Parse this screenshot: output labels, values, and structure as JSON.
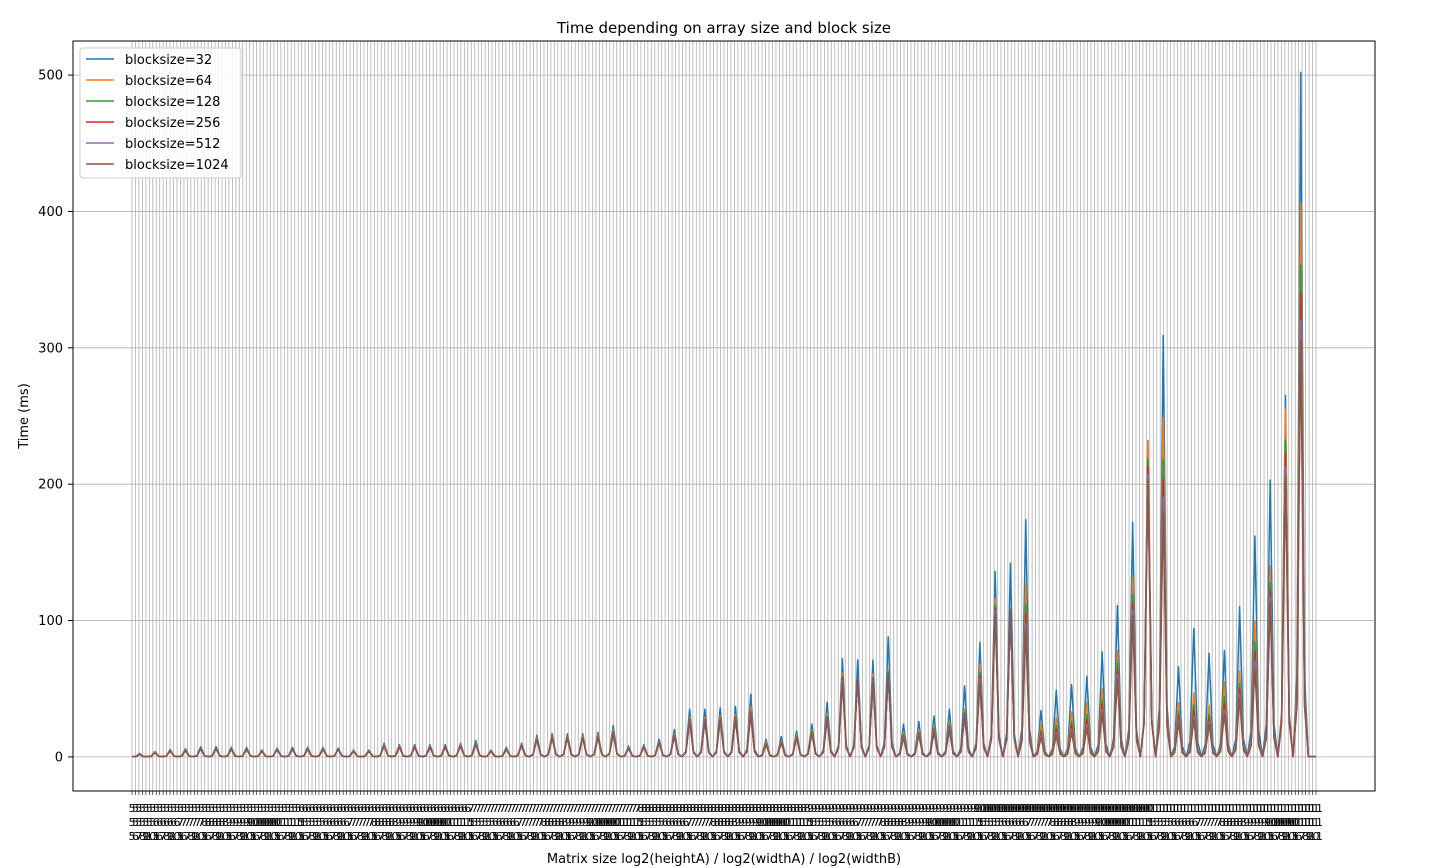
{
  "chart_data": {
    "type": "line",
    "title": "Time depending on array size and block size",
    "xlabel": "Matrix size log2(heightA) / log2(widthA) / log2(widthB)",
    "ylabel": "Time (ms)",
    "ylim": [
      -25,
      525
    ],
    "yticks": [
      0,
      100,
      200,
      300,
      400,
      500
    ],
    "grid": true,
    "legend_position": "top-left",
    "x_tick_count": 343,
    "peak_period": 4,
    "colors": [
      "#1f77b4",
      "#ff7f0e",
      "#2ca02c",
      "#d62728",
      "#9467bd",
      "#8c564b"
    ],
    "series_names": [
      "blocksize=32",
      "blocksize=64",
      "blocksize=128",
      "blocksize=256",
      "blocksize=512",
      "blocksize=1024"
    ],
    "peaks_blocksize32": [
      2.5,
      4,
      5.5,
      6,
      7.5,
      7.5,
      7,
      7,
      5,
      6.5,
      7,
      7,
      7,
      6.5,
      5,
      5,
      10,
      9,
      9,
      9,
      9,
      10,
      12,
      5,
      7,
      10,
      16,
      17,
      17,
      17,
      18,
      23,
      8,
      9,
      13,
      20,
      35,
      35,
      36,
      37,
      46,
      13,
      15,
      19,
      24,
      40,
      72,
      71,
      71,
      88,
      24,
      26,
      30,
      35,
      52,
      84,
      136,
      142,
      174,
      34,
      49,
      53,
      59,
      77,
      111,
      172,
      232,
      309,
      66,
      94,
      76,
      78,
      110,
      162,
      203,
      265,
      502
    ],
    "peaks_blocksize64": [
      2,
      3.5,
      5,
      5,
      6.5,
      6.5,
      6,
      6,
      4.5,
      6,
      6,
      6,
      6,
      6,
      4.5,
      4.5,
      9,
      8,
      8,
      8,
      8,
      9,
      10,
      4.5,
      6,
      9,
      14,
      15,
      15,
      15,
      16,
      20,
      7,
      8,
      11,
      17,
      29,
      29,
      30,
      31,
      37,
      11,
      12,
      16,
      20,
      32,
      62,
      58,
      61,
      64,
      18,
      20,
      23,
      26,
      35,
      68,
      116,
      110,
      127,
      24,
      29,
      33,
      40,
      50,
      78,
      132,
      232,
      249,
      40,
      47,
      38,
      55,
      63,
      100,
      140,
      255,
      406
    ],
    "peaks_blocksize1024": [
      2,
      3,
      4.5,
      4.5,
      6,
      6,
      5.5,
      5.5,
      4,
      5.5,
      5.5,
      5.5,
      5.5,
      5.5,
      4,
      4,
      8,
      7,
      7,
      7,
      7,
      8,
      9,
      4,
      5.5,
      8,
      13,
      14,
      14,
      14,
      14,
      17,
      6,
      7,
      10,
      15,
      26,
      26,
      27,
      27,
      30,
      9,
      10,
      14,
      17,
      27,
      55,
      57,
      55,
      59,
      14,
      16,
      18,
      20,
      29,
      55,
      105,
      107,
      93,
      14,
      16,
      18,
      21,
      32,
      57,
      103,
      203,
      180,
      25,
      27,
      24,
      31,
      43,
      65,
      113,
      205,
      305
    ]
  }
}
